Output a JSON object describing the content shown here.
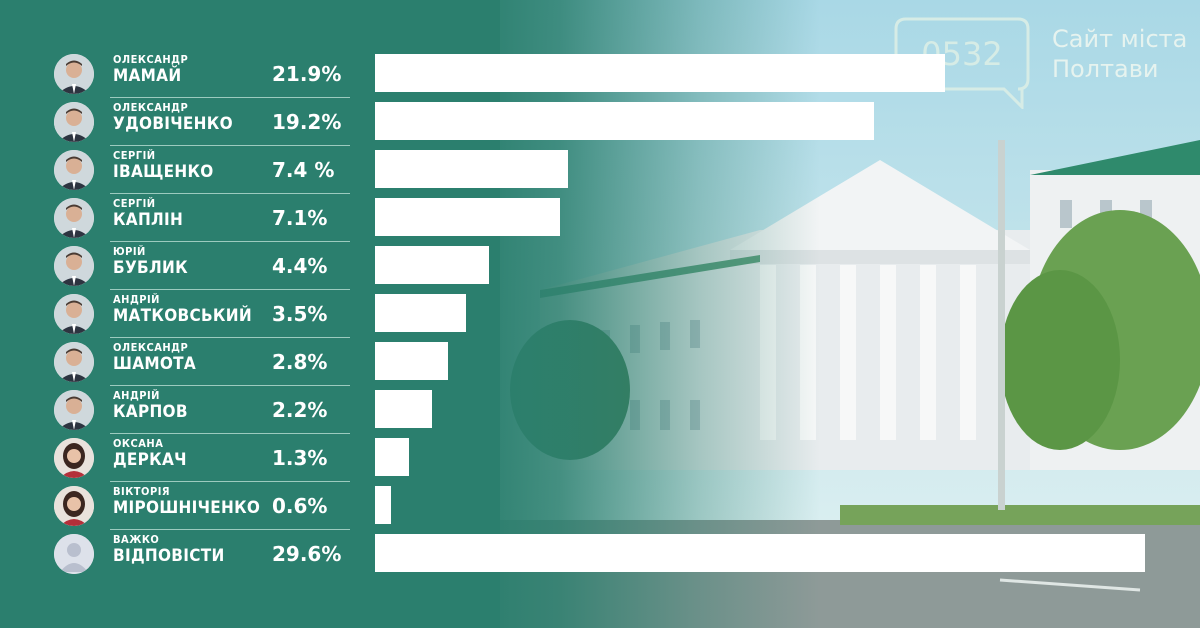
{
  "logo": {
    "number": "0532",
    "line1": "Сайт міста",
    "line2": "Полтави"
  },
  "colors": {
    "background": "#2b7f6e",
    "bar": "#ffffff",
    "text": "#ffffff",
    "separator": "#9ccbbf"
  },
  "chart_data": {
    "type": "bar",
    "orientation": "horizontal",
    "xlim": [
      0,
      30
    ],
    "categories": [
      {
        "first": "ОЛЕКСАНДР",
        "last": "МАМАЙ",
        "label": "21.9%",
        "value": 21.9,
        "avatar": "man-photo-icon"
      },
      {
        "first": "ОЛЕКСАНДР",
        "last": "УДОВІЧЕНКО",
        "label": "19.2%",
        "value": 19.2,
        "avatar": "man-photo-icon"
      },
      {
        "first": "СЕРГІЙ",
        "last": "ІВАЩЕНКО",
        "label": "7.4 %",
        "value": 7.4,
        "avatar": "man-photo-icon"
      },
      {
        "first": "СЕРГІЙ",
        "last": "КАПЛІН",
        "label": "7.1%",
        "value": 7.1,
        "avatar": "man-photo-icon"
      },
      {
        "first": "ЮРІЙ",
        "last": "БУБЛИК",
        "label": "4.4%",
        "value": 4.4,
        "avatar": "man-photo-icon"
      },
      {
        "first": "АНДРІЙ",
        "last": "МАТКОВСЬКИЙ",
        "label": "3.5%",
        "value": 3.5,
        "avatar": "man-photo-icon"
      },
      {
        "first": "ОЛЕКСАНДР",
        "last": "ШАМОТА",
        "label": "2.8%",
        "value": 2.8,
        "avatar": "man-photo-icon"
      },
      {
        "first": "АНДРІЙ",
        "last": "КАРПОВ",
        "label": "2.2%",
        "value": 2.2,
        "avatar": "man-photo-icon"
      },
      {
        "first": "ОКСАНА",
        "last": "ДЕРКАЧ",
        "label": "1.3%",
        "value": 1.3,
        "avatar": "woman-photo-icon"
      },
      {
        "first": "ВІКТОРІЯ",
        "last": "МІРОШНІЧЕНКО",
        "label": "0.6%",
        "value": 0.6,
        "avatar": "woman-photo-icon"
      },
      {
        "first": "ВАЖКО",
        "last": "ВІДПОВІСТИ",
        "label": "29.6%",
        "value": 29.6,
        "avatar": "placeholder-user-icon"
      }
    ]
  }
}
